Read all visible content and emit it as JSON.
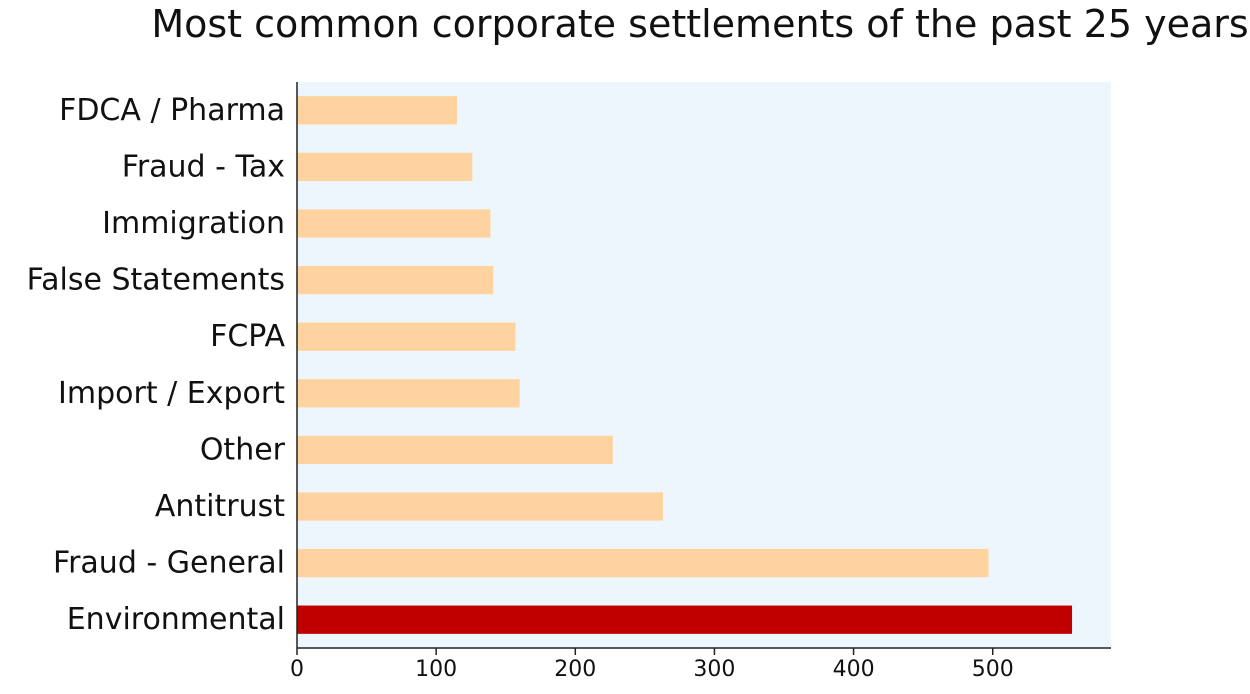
{
  "chart_data": {
    "type": "bar",
    "orientation": "horizontal",
    "title": "Most common corporate settlements of the past 25 years",
    "xlabel": "",
    "ylabel": "",
    "categories": [
      "Environmental",
      "Fraud - General",
      "Antitrust",
      "Other",
      "Import / Export",
      "FCPA",
      "False Statements",
      "Immigration",
      "Fraud - Tax",
      "FDCA / Pharma"
    ],
    "values": [
      557,
      497,
      263,
      227,
      160,
      157,
      141,
      139,
      126,
      115
    ],
    "highlight_category": "Environmental",
    "xlim": [
      0,
      585
    ],
    "xticks": [
      0,
      100,
      200,
      300,
      400,
      500
    ],
    "grid": false,
    "colors": {
      "bar": "#fed39f",
      "highlight": "#c00000",
      "plot_background": "#eef6fd",
      "axis": "#222222"
    }
  }
}
